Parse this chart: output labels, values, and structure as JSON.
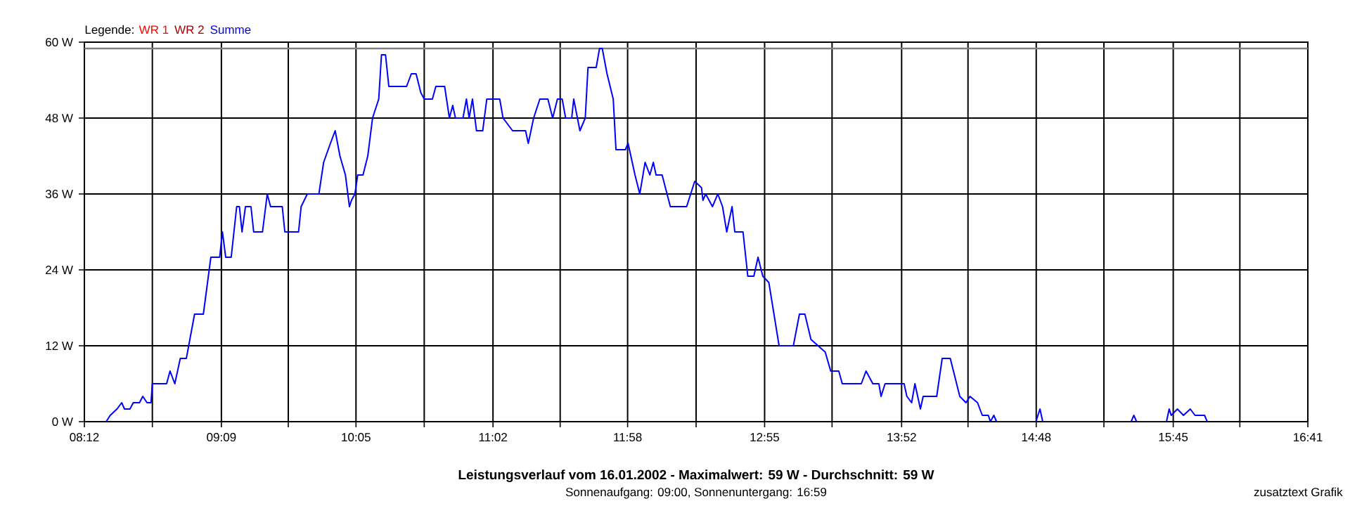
{
  "chart_data": {
    "type": "line",
    "title": "Leistungsverlauf vom 16.01.2002 - Maximalwert: 59 W - Durchschnitt: 59 W",
    "subtitle": "Sonnenaufgang: 09:00, Sonnenuntergang: 16:59",
    "legend_title": "Legende:",
    "annotations": [
      "zusatztext Grafik"
    ],
    "xlim": [
      8.2,
      16.6833
    ],
    "xticks": [
      {
        "value": 8.2,
        "label": "08:12"
      },
      {
        "value": 8.6713,
        "label": null
      },
      {
        "value": 9.15,
        "label": "09:09"
      },
      {
        "value": 9.6139,
        "label": null
      },
      {
        "value": 10.0833,
        "label": "10:05"
      },
      {
        "value": 10.5565,
        "label": null
      },
      {
        "value": 11.0333,
        "label": "11:02"
      },
      {
        "value": 11.4991,
        "label": null
      },
      {
        "value": 11.9667,
        "label": "11:58"
      },
      {
        "value": 12.4417,
        "label": null
      },
      {
        "value": 12.9167,
        "label": "12:55"
      },
      {
        "value": 13.3843,
        "label": null
      },
      {
        "value": 13.8667,
        "label": "13:52"
      },
      {
        "value": 14.3269,
        "label": null
      },
      {
        "value": 14.8,
        "label": "14:48"
      },
      {
        "value": 15.2694,
        "label": null
      },
      {
        "value": 15.75,
        "label": "15:45"
      },
      {
        "value": 16.212,
        "label": null
      },
      {
        "value": 16.6833,
        "label": "16:41"
      }
    ],
    "ylim": [
      0,
      60
    ],
    "yticks": [
      {
        "value": 0,
        "label": "0 W"
      },
      {
        "value": 12,
        "label": "12 W"
      },
      {
        "value": 24,
        "label": "24 W"
      },
      {
        "value": 36,
        "label": "36 W"
      },
      {
        "value": 48,
        "label": "48 W"
      },
      {
        "value": 60,
        "label": "60 W"
      }
    ],
    "grid": true,
    "legend": "top left",
    "marker": "none",
    "line_style": "solid",
    "ref_lines": [
      {
        "axis": "y",
        "value": 59,
        "color": "#808080"
      }
    ],
    "series": [
      {
        "name": "WR 1",
        "color": "#ff0000"
      },
      {
        "name": "WR 2",
        "color": "#a00000"
      },
      {
        "name": "Summe",
        "color": "#0000ff",
        "x": [
          8.351,
          8.379,
          8.426,
          8.459,
          8.478,
          8.516,
          8.539,
          8.582,
          8.605,
          8.634,
          8.662,
          8.671,
          8.77,
          8.794,
          8.827,
          8.865,
          8.907,
          8.964,
          9.025,
          9.077,
          9.138,
          9.157,
          9.18,
          9.218,
          9.256,
          9.275,
          9.293,
          9.317,
          9.355,
          9.374,
          9.435,
          9.468,
          9.491,
          9.572,
          9.59,
          9.685,
          9.703,
          9.746,
          9.826,
          9.859,
          9.906,
          9.939,
          9.972,
          10.01,
          10.038,
          10.052,
          10.076,
          10.095,
          10.132,
          10.165,
          10.198,
          10.241,
          10.26,
          10.288,
          10.311,
          10.434,
          10.467,
          10.5,
          10.533,
          10.557,
          10.613,
          10.637,
          10.698,
          10.731,
          10.754,
          10.773,
          10.825,
          10.849,
          10.868,
          10.891,
          10.919,
          10.962,
          10.99,
          11.08,
          11.103,
          11.169,
          11.259,
          11.278,
          11.315,
          11.358,
          11.414,
          11.447,
          11.48,
          11.513,
          11.537,
          11.579,
          11.593,
          11.636,
          11.673,
          11.692,
          11.749,
          11.772,
          11.791,
          11.824,
          11.867,
          11.886,
          11.951,
          11.97,
          12.018,
          12.051,
          12.088,
          12.121,
          12.145,
          12.164,
          12.206,
          12.263,
          12.376,
          12.432,
          12.479,
          12.489,
          12.508,
          12.555,
          12.592,
          12.625,
          12.654,
          12.691,
          12.71,
          12.767,
          12.8,
          12.842,
          12.871,
          12.904,
          12.946,
          13.017,
          13.116,
          13.158,
          13.196,
          13.238,
          13.337,
          13.375,
          13.431,
          13.455,
          13.587,
          13.62,
          13.667,
          13.709,
          13.724,
          13.752,
          13.884,
          13.903,
          13.936,
          13.959,
          13.997,
          14.016,
          14.11,
          14.148,
          14.204,
          14.27,
          14.313,
          14.341,
          14.393,
          14.426,
          14.468,
          14.482,
          14.506,
          14.525,
          14.798,
          14.826,
          14.845,
          15.458,
          15.477,
          15.496,
          15.703,
          15.722,
          15.736,
          15.779,
          15.821,
          15.868,
          15.901,
          15.967,
          15.986
        ],
        "values": [
          0,
          1,
          2,
          3,
          2,
          2,
          3,
          3,
          4,
          3,
          3,
          6,
          6,
          8,
          6,
          10,
          10,
          17,
          17,
          26,
          26,
          30,
          26,
          26,
          34,
          34,
          30,
          34,
          34,
          30,
          30,
          36,
          34,
          34,
          30,
          30,
          34,
          36,
          36,
          41,
          44,
          46,
          42,
          39,
          34,
          35,
          36,
          39,
          39,
          42,
          48,
          51,
          58,
          58,
          53,
          53,
          55,
          55,
          52,
          51,
          51,
          53,
          53,
          48,
          50,
          48,
          48,
          51,
          48,
          51,
          46,
          46,
          51,
          51,
          48,
          46,
          46,
          44,
          48,
          51,
          51,
          48,
          51,
          51,
          48,
          48,
          51,
          46,
          48,
          56,
          56,
          59,
          59,
          55,
          51,
          43,
          43,
          44,
          39,
          36,
          41,
          39,
          41,
          39,
          39,
          34,
          34,
          38,
          37,
          35,
          36,
          34,
          36,
          34,
          30,
          34,
          30,
          30,
          23,
          23,
          26,
          23,
          22,
          12,
          12,
          17,
          17,
          13,
          11,
          8,
          8,
          6,
          6,
          8,
          6,
          6,
          4,
          6,
          6,
          4,
          3,
          6,
          2,
          4,
          4,
          10,
          10,
          4,
          3,
          4,
          3,
          1,
          1,
          0,
          1,
          0,
          0,
          2,
          0,
          0,
          1,
          0,
          0,
          2,
          1,
          2,
          1,
          2,
          1,
          1,
          0
        ]
      }
    ]
  }
}
